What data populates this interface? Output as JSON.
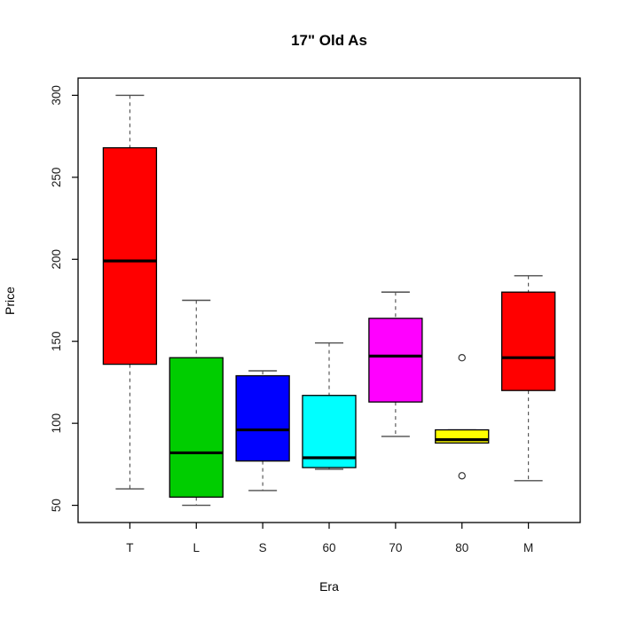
{
  "title": "17\" Old As",
  "chart_data": {
    "type": "boxplot",
    "title": "17\" Old As",
    "xlabel": "Era",
    "ylabel": "Price",
    "categories": [
      "T",
      "L",
      "S",
      "60",
      "70",
      "80",
      "M"
    ],
    "y_ticks": [
      50,
      100,
      150,
      200,
      250,
      300
    ],
    "ylim": [
      39.5,
      310.5
    ],
    "grid": false,
    "legend": "none",
    "frame": true,
    "boxes": [
      {
        "category": "T",
        "color": "#FF0000",
        "whisker_low": 60,
        "q1": 136,
        "median": 199,
        "q3": 268,
        "whisker_high": 300,
        "outliers": []
      },
      {
        "category": "L",
        "color": "#00CD00",
        "whisker_low": 50,
        "q1": 55,
        "median": 82,
        "q3": 140,
        "whisker_high": 175,
        "outliers": []
      },
      {
        "category": "S",
        "color": "#0000FF",
        "whisker_low": 59,
        "q1": 77,
        "median": 96,
        "q3": 129,
        "whisker_high": 132,
        "outliers": []
      },
      {
        "category": "60",
        "color": "#00FFFF",
        "whisker_low": 72,
        "q1": 73,
        "median": 79,
        "q3": 117,
        "whisker_high": 149,
        "outliers": []
      },
      {
        "category": "70",
        "color": "#FF00FF",
        "whisker_low": 92,
        "q1": 113,
        "median": 141,
        "q3": 164,
        "whisker_high": 180,
        "outliers": []
      },
      {
        "category": "80",
        "color": "#FFFF00",
        "whisker_low": 88,
        "q1": 88,
        "median": 90,
        "q3": 96,
        "whisker_high": 96,
        "outliers": [
          140,
          68
        ]
      },
      {
        "category": "M",
        "color": "#FF0000",
        "whisker_low": 65,
        "q1": 120,
        "median": 140,
        "q3": 180,
        "whisker_high": 190,
        "outliers": []
      }
    ],
    "colors": {
      "box_border": "#000000",
      "median_line": "#000000",
      "whisker": "#4d4d4d",
      "outlier_stroke": "#333333",
      "background": "#ffffff"
    }
  }
}
